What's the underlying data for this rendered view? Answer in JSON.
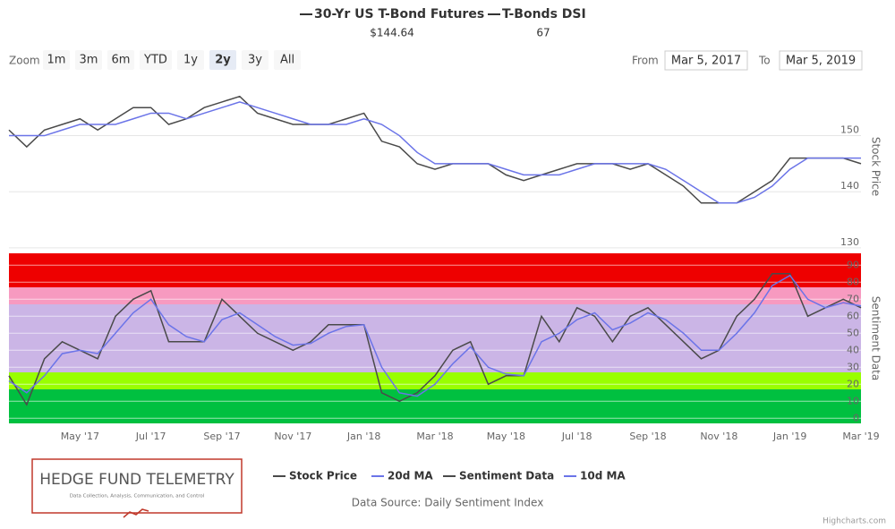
{
  "header": [
    {
      "name": "30-Yr US T-Bond Futures",
      "value": "$144.64"
    },
    {
      "name": "T-Bonds DSI",
      "value": "67"
    }
  ],
  "zoom": {
    "label": "Zoom",
    "buttons": [
      "1m",
      "3m",
      "6m",
      "YTD",
      "1y",
      "2y",
      "3y",
      "All"
    ],
    "selected": "2y"
  },
  "range": {
    "from_label": "From",
    "from": "Mar 5, 2017",
    "to_label": "To",
    "to": "Mar 5, 2019"
  },
  "chart_data": [
    {
      "type": "line",
      "y_label": "Stock Price",
      "ylim": [
        129.5,
        159.5
      ],
      "yticks": [
        130,
        140,
        150
      ],
      "grid": true,
      "series": [
        {
          "name": "Stock Price",
          "color": "#4a4a4a",
          "values": [
            151,
            148,
            151,
            152,
            153,
            151,
            153,
            155,
            155,
            152,
            153,
            155,
            156,
            157,
            154,
            153,
            152,
            152,
            152,
            153,
            154,
            149,
            148,
            145,
            144,
            145,
            145,
            145,
            143,
            142,
            143,
            144,
            145,
            145,
            145,
            144,
            145,
            143,
            141,
            138,
            138,
            138,
            140,
            142,
            146,
            146,
            146,
            146,
            145
          ]
        },
        {
          "name": "20d MA",
          "color": "#6b74e8",
          "values": [
            150,
            150,
            150,
            151,
            152,
            152,
            152,
            153,
            154,
            154,
            153,
            154,
            155,
            156,
            155,
            154,
            153,
            152,
            152,
            152,
            153,
            152,
            150,
            147,
            145,
            145,
            145,
            145,
            144,
            143,
            143,
            143,
            144,
            145,
            145,
            145,
            145,
            144,
            142,
            140,
            138,
            138,
            139,
            141,
            144,
            146,
            146,
            146,
            146
          ]
        }
      ]
    },
    {
      "type": "line",
      "y_label": "Sentiment Data",
      "ylim": [
        -3,
        97
      ],
      "yticks": [
        0,
        10,
        20,
        30,
        40,
        50,
        60,
        70,
        80,
        90
      ],
      "grid": true,
      "bands": [
        {
          "from": 77,
          "to": 97,
          "color": "#ee0000"
        },
        {
          "from": 67,
          "to": 77,
          "color": "#f79ac0"
        },
        {
          "from": 27,
          "to": 67,
          "color": "#cbb5e6"
        },
        {
          "from": 17,
          "to": 27,
          "color": "#99ff00"
        },
        {
          "from": -3,
          "to": 17,
          "color": "#00c040"
        }
      ],
      "categories": [
        null,
        null,
        null,
        null,
        "May '17",
        null,
        null,
        null,
        "Jul '17",
        null,
        null,
        null,
        "Sep '17",
        null,
        null,
        null,
        "Nov '17",
        null,
        null,
        null,
        "Jan '18",
        null,
        null,
        null,
        "Mar '18",
        null,
        null,
        null,
        "May '18",
        null,
        null,
        null,
        "Jul '18",
        null,
        null,
        null,
        "Sep '18",
        null,
        null,
        null,
        "Nov '18",
        null,
        null,
        null,
        "Jan '19",
        null,
        null,
        null,
        "Mar '19"
      ],
      "series": [
        {
          "name": "Sentiment Data",
          "color": "#4a4a4a",
          "values": [
            25,
            8,
            35,
            45,
            40,
            35,
            60,
            70,
            75,
            45,
            45,
            45,
            70,
            60,
            50,
            45,
            40,
            45,
            55,
            55,
            55,
            15,
            10,
            15,
            25,
            40,
            45,
            20,
            25,
            25,
            60,
            45,
            65,
            60,
            45,
            60,
            65,
            55,
            45,
            35,
            40,
            60,
            70,
            85,
            85,
            60,
            65,
            70,
            65
          ]
        },
        {
          "name": "10d MA",
          "color": "#6b74e8",
          "values": [
            22,
            15,
            25,
            38,
            40,
            38,
            50,
            62,
            70,
            55,
            48,
            45,
            58,
            62,
            55,
            48,
            43,
            44,
            50,
            54,
            55,
            30,
            15,
            13,
            20,
            32,
            42,
            30,
            26,
            25,
            45,
            50,
            58,
            62,
            52,
            56,
            62,
            58,
            50,
            40,
            40,
            50,
            62,
            78,
            84,
            70,
            65,
            68,
            66
          ]
        }
      ]
    }
  ],
  "logo": {
    "title": "HEDGE FUND TELEMETRY",
    "subtitle": "Data Collection, Analysis, Communication, and Control"
  },
  "source": "Data Source: Daily Sentiment Index",
  "credits": "Highcharts.com"
}
